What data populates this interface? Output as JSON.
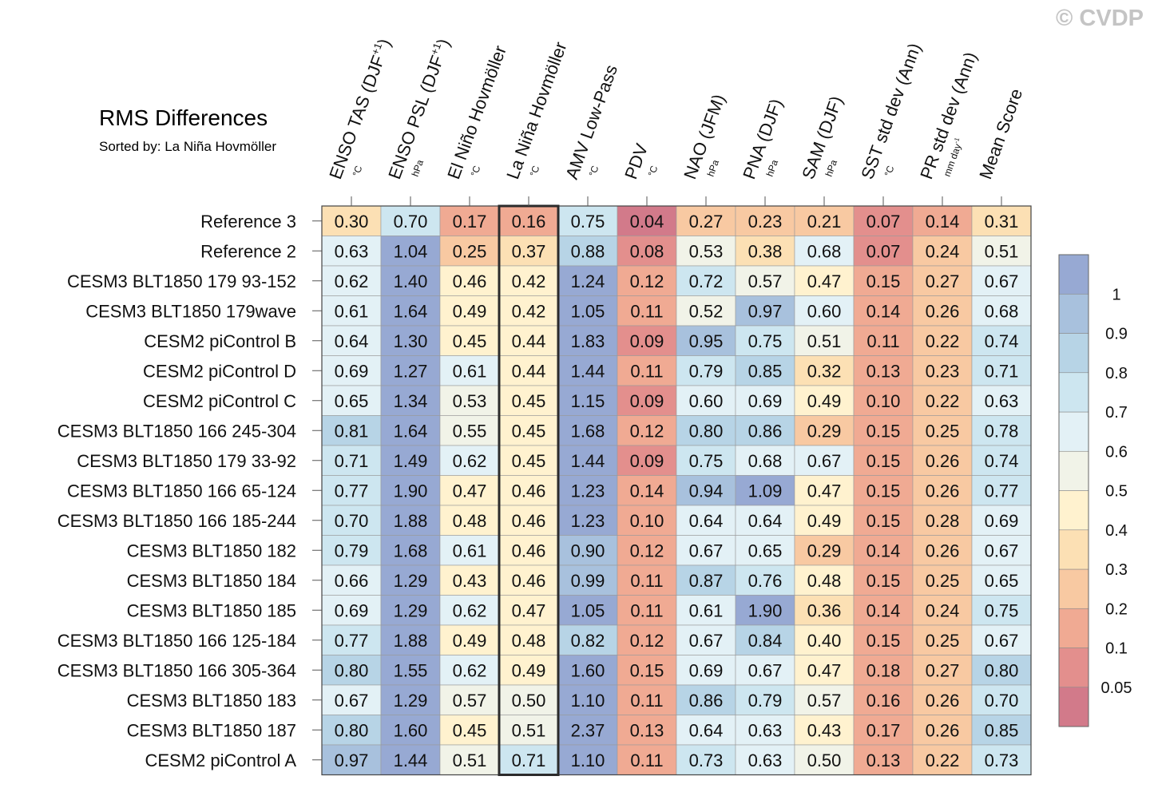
{
  "watermark": "© CVDP",
  "chart_data": {
    "type": "heatmap",
    "title": "RMS Differences",
    "subtitle": "Sorted by: La Niña Hovmöller",
    "highlighted_column": "La Niña Hovmöller",
    "columns": [
      {
        "name": "ENSO TAS (DJF",
        "sup": "+1",
        "suffix": ")",
        "units": "°C",
        "unit_sup": ""
      },
      {
        "name": "ENSO PSL (DJF",
        "sup": "+1",
        "suffix": ")",
        "units": "hPa",
        "unit_sup": ""
      },
      {
        "name": "El Niño Hovmöller",
        "sup": "",
        "suffix": "",
        "units": "°C",
        "unit_sup": ""
      },
      {
        "name": "La Niña Hovmöller",
        "sup": "",
        "suffix": "",
        "units": "°C",
        "unit_sup": ""
      },
      {
        "name": "AMV Low-Pass",
        "sup": "",
        "suffix": "",
        "units": "°C",
        "unit_sup": ""
      },
      {
        "name": "PDV",
        "sup": "",
        "suffix": "",
        "units": "°C",
        "unit_sup": ""
      },
      {
        "name": "NAO (JFM)",
        "sup": "",
        "suffix": "",
        "units": "hPa",
        "unit_sup": ""
      },
      {
        "name": "PNA (DJF)",
        "sup": "",
        "suffix": "",
        "units": "hPa",
        "unit_sup": ""
      },
      {
        "name": "SAM (DJF)",
        "sup": "",
        "suffix": "",
        "units": "hPa",
        "unit_sup": ""
      },
      {
        "name": "SST std dev (Ann)",
        "sup": "",
        "suffix": "",
        "units": "°C",
        "unit_sup": ""
      },
      {
        "name": "PR std dev (Ann)",
        "sup": "",
        "suffix": "",
        "units": "mm day",
        "unit_sup": "-1"
      },
      {
        "name": "Mean Score",
        "sup": "",
        "suffix": "",
        "units": "",
        "unit_sup": ""
      }
    ],
    "rows": [
      {
        "name": "Reference 3",
        "values": [
          "0.30",
          "0.70",
          "0.17",
          "0.16",
          "0.75",
          "0.04",
          "0.27",
          "0.23",
          "0.21",
          "0.07",
          "0.14",
          "0.31"
        ]
      },
      {
        "name": "Reference 2",
        "values": [
          "0.63",
          "1.04",
          "0.25",
          "0.37",
          "0.88",
          "0.08",
          "0.53",
          "0.38",
          "0.68",
          "0.07",
          "0.24",
          "0.51"
        ]
      },
      {
        "name": "CESM3 BLT1850 179 93-152",
        "values": [
          "0.62",
          "1.40",
          "0.46",
          "0.42",
          "1.24",
          "0.12",
          "0.72",
          "0.57",
          "0.47",
          "0.15",
          "0.27",
          "0.67"
        ]
      },
      {
        "name": "CESM3 BLT1850 179wave",
        "values": [
          "0.61",
          "1.64",
          "0.49",
          "0.42",
          "1.05",
          "0.11",
          "0.52",
          "0.97",
          "0.60",
          "0.14",
          "0.26",
          "0.68"
        ]
      },
      {
        "name": "CESM2 piControl B",
        "values": [
          "0.64",
          "1.30",
          "0.45",
          "0.44",
          "1.83",
          "0.09",
          "0.95",
          "0.75",
          "0.51",
          "0.11",
          "0.22",
          "0.74"
        ]
      },
      {
        "name": "CESM2 piControl D",
        "values": [
          "0.69",
          "1.27",
          "0.61",
          "0.44",
          "1.44",
          "0.11",
          "0.79",
          "0.85",
          "0.32",
          "0.13",
          "0.23",
          "0.71"
        ]
      },
      {
        "name": "CESM2 piControl C",
        "values": [
          "0.65",
          "1.34",
          "0.53",
          "0.45",
          "1.15",
          "0.09",
          "0.60",
          "0.69",
          "0.49",
          "0.10",
          "0.22",
          "0.63"
        ]
      },
      {
        "name": "CESM3 BLT1850 166 245-304",
        "values": [
          "0.81",
          "1.64",
          "0.55",
          "0.45",
          "1.68",
          "0.12",
          "0.80",
          "0.86",
          "0.29",
          "0.15",
          "0.25",
          "0.78"
        ]
      },
      {
        "name": "CESM3 BLT1850 179 33-92",
        "values": [
          "0.71",
          "1.49",
          "0.62",
          "0.45",
          "1.44",
          "0.09",
          "0.75",
          "0.68",
          "0.67",
          "0.15",
          "0.26",
          "0.74"
        ]
      },
      {
        "name": "CESM3 BLT1850 166 65-124",
        "values": [
          "0.77",
          "1.90",
          "0.47",
          "0.46",
          "1.23",
          "0.14",
          "0.94",
          "1.09",
          "0.47",
          "0.15",
          "0.26",
          "0.77"
        ]
      },
      {
        "name": "CESM3 BLT1850 166 185-244",
        "values": [
          "0.70",
          "1.88",
          "0.48",
          "0.46",
          "1.23",
          "0.10",
          "0.64",
          "0.64",
          "0.49",
          "0.15",
          "0.28",
          "0.69"
        ]
      },
      {
        "name": "CESM3 BLT1850 182",
        "values": [
          "0.79",
          "1.68",
          "0.61",
          "0.46",
          "0.90",
          "0.12",
          "0.67",
          "0.65",
          "0.29",
          "0.14",
          "0.26",
          "0.67"
        ]
      },
      {
        "name": "CESM3 BLT1850 184",
        "values": [
          "0.66",
          "1.29",
          "0.43",
          "0.46",
          "0.99",
          "0.11",
          "0.87",
          "0.76",
          "0.48",
          "0.15",
          "0.25",
          "0.65"
        ]
      },
      {
        "name": "CESM3 BLT1850 185",
        "values": [
          "0.69",
          "1.29",
          "0.62",
          "0.47",
          "1.05",
          "0.11",
          "0.61",
          "1.90",
          "0.36",
          "0.14",
          "0.24",
          "0.75"
        ]
      },
      {
        "name": "CESM3 BLT1850 166 125-184",
        "values": [
          "0.77",
          "1.88",
          "0.49",
          "0.48",
          "0.82",
          "0.12",
          "0.67",
          "0.84",
          "0.40",
          "0.15",
          "0.25",
          "0.67"
        ]
      },
      {
        "name": "CESM3 BLT1850 166 305-364",
        "values": [
          "0.80",
          "1.55",
          "0.62",
          "0.49",
          "1.60",
          "0.15",
          "0.69",
          "0.67",
          "0.47",
          "0.18",
          "0.27",
          "0.80"
        ]
      },
      {
        "name": "CESM3 BLT1850 183",
        "values": [
          "0.67",
          "1.29",
          "0.57",
          "0.50",
          "1.10",
          "0.11",
          "0.86",
          "0.79",
          "0.57",
          "0.16",
          "0.26",
          "0.70"
        ]
      },
      {
        "name": "CESM3 BLT1850 187",
        "values": [
          "0.80",
          "1.60",
          "0.45",
          "0.51",
          "2.37",
          "0.13",
          "0.64",
          "0.63",
          "0.43",
          "0.17",
          "0.26",
          "0.85"
        ]
      },
      {
        "name": "CESM2 piControl A",
        "values": [
          "0.97",
          "1.44",
          "0.51",
          "0.71",
          "1.10",
          "0.11",
          "0.73",
          "0.63",
          "0.50",
          "0.13",
          "0.22",
          "0.73"
        ]
      }
    ],
    "colorbar": {
      "bounds": [
        0.05,
        0.1,
        0.2,
        0.3,
        0.4,
        0.5,
        0.6,
        0.7,
        0.8,
        0.9,
        1
      ],
      "labels": [
        "0.05",
        "0.1",
        "0.2",
        "0.3",
        "0.4",
        "0.5",
        "0.6",
        "0.7",
        "0.8",
        "0.9",
        "1"
      ],
      "colors": [
        "#d27a8a",
        "#e38f8d",
        "#f0aa93",
        "#f8c9a2",
        "#fce0b4",
        "#fff2cf",
        "#f1f3e8",
        "#e3f1f6",
        "#cde6f0",
        "#b7d4e6",
        "#a8c1dd",
        "#97a9d3"
      ]
    }
  }
}
